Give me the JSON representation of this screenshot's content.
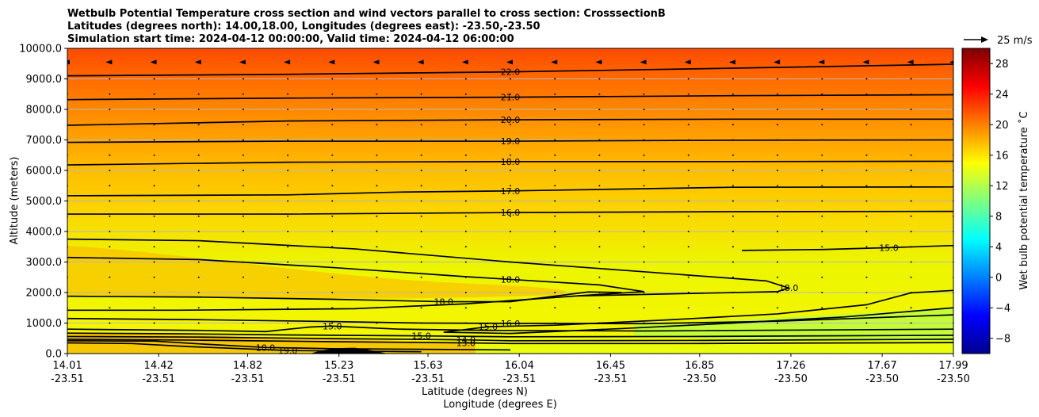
{
  "title_lines": [
    "Wetbulb Potential Temperature cross section and wind vectors parallel to cross section: CrosssectionB",
    "Latitudes (degrees north): 14.00,18.00, Longitudes (degrees east): -23.50,-23.50",
    "Simulation start time: 2024-04-12 00:00:00, Valid time: 2024-04-12 06:00:00"
  ],
  "quiver_key": "25 m/s",
  "chart_data": {
    "type": "heatmap",
    "title": "Wetbulb Potential Temperature cross section and wind vectors parallel to cross section: CrosssectionB",
    "xlabel": "Latitude (degrees N)",
    "xlabel2": "Longitude (degrees E)",
    "ylabel": "Altitude (meters)",
    "colorbar_label": "Wet bulb potential temperature ˚C",
    "colormap": "jet",
    "clim": [
      -10,
      30
    ],
    "colorbar_ticks": [
      "−8",
      "−4",
      "0",
      "4",
      "8",
      "12",
      "16",
      "20",
      "24",
      "28"
    ],
    "colorbar_tick_values": [
      -8,
      -4,
      0,
      4,
      8,
      12,
      16,
      20,
      24,
      28
    ],
    "xlim": [
      14.01,
      17.99
    ],
    "ylim": [
      0,
      10000
    ],
    "x_ticks": [
      {
        "lat": "14.01",
        "lon": "-23.51",
        "value": 14.01
      },
      {
        "lat": "14.42",
        "lon": "-23.51",
        "value": 14.42
      },
      {
        "lat": "14.82",
        "lon": "-23.51",
        "value": 14.82
      },
      {
        "lat": "15.23",
        "lon": "-23.51",
        "value": 15.23
      },
      {
        "lat": "15.63",
        "lon": "-23.51",
        "value": 15.63
      },
      {
        "lat": "16.04",
        "lon": "-23.51",
        "value": 16.04
      },
      {
        "lat": "16.45",
        "lon": "-23.51",
        "value": 16.45
      },
      {
        "lat": "16.85",
        "lon": "-23.50",
        "value": 16.85
      },
      {
        "lat": "17.26",
        "lon": "-23.50",
        "value": 17.26
      },
      {
        "lat": "17.67",
        "lon": "-23.50",
        "value": 17.67
      },
      {
        "lat": "17.99",
        "lon": "-23.50",
        "value": 17.99
      }
    ],
    "y_ticks": [
      {
        "label": "0.0",
        "value": 0
      },
      {
        "label": "1000.0",
        "value": 1000
      },
      {
        "label": "2000.0",
        "value": 2000
      },
      {
        "label": "3000.0",
        "value": 3000
      },
      {
        "label": "4000.0",
        "value": 4000
      },
      {
        "label": "5000.0",
        "value": 5000
      },
      {
        "label": "6000.0",
        "value": 6000
      },
      {
        "label": "7000.0",
        "value": 7000
      },
      {
        "label": "8000.0",
        "value": 8000
      },
      {
        "label": "9000.0",
        "value": 9000
      },
      {
        "label": "10000.0",
        "value": 10000
      }
    ],
    "grid": "horizontal",
    "contours": [
      {
        "level": 22,
        "label": "22.0",
        "points": [
          [
            14.01,
            9100
          ],
          [
            15.0,
            9150
          ],
          [
            16.0,
            9230
          ],
          [
            17.0,
            9350
          ],
          [
            17.99,
            9480
          ]
        ]
      },
      {
        "level": 21,
        "label": "21.0",
        "points": [
          [
            14.01,
            8320
          ],
          [
            15.0,
            8370
          ],
          [
            16.0,
            8400
          ],
          [
            17.0,
            8450
          ],
          [
            17.99,
            8480
          ]
        ]
      },
      {
        "level": 20,
        "label": "20.0",
        "points": [
          [
            14.01,
            7480
          ],
          [
            15.0,
            7620
          ],
          [
            16.0,
            7660
          ],
          [
            17.0,
            7680
          ],
          [
            17.99,
            7680
          ]
        ]
      },
      {
        "level": 19,
        "label": "19.0",
        "points": [
          [
            14.01,
            6920
          ],
          [
            15.0,
            6960
          ],
          [
            16.0,
            6960
          ],
          [
            17.0,
            6990
          ],
          [
            17.99,
            7000
          ]
        ]
      },
      {
        "level": 18,
        "label": "18.0",
        "points": [
          [
            14.01,
            6180
          ],
          [
            15.0,
            6270
          ],
          [
            16.0,
            6290
          ],
          [
            17.0,
            6290
          ],
          [
            17.99,
            6300
          ]
        ]
      },
      {
        "level": 17,
        "label": "17.0",
        "points": [
          [
            14.01,
            5170
          ],
          [
            15.0,
            5200
          ],
          [
            15.5,
            5290
          ],
          [
            16.0,
            5330
          ],
          [
            17.0,
            5450
          ],
          [
            17.99,
            5460
          ]
        ]
      },
      {
        "level": 16,
        "label": "16.0",
        "points": [
          [
            14.01,
            4570
          ],
          [
            15.0,
            4570
          ],
          [
            16.0,
            4620
          ],
          [
            17.0,
            4650
          ],
          [
            17.99,
            4660
          ]
        ]
      },
      {
        "level": 18,
        "label": "18.0",
        "points": [
          [
            14.01,
            3750
          ],
          [
            14.6,
            3700
          ],
          [
            15.3,
            3430
          ],
          [
            16.0,
            3000
          ],
          [
            16.6,
            2680
          ],
          [
            17.15,
            2380
          ],
          [
            17.25,
            2150
          ],
          [
            17.2,
            2030
          ],
          [
            16.3,
            1890
          ],
          [
            15.8,
            1630
          ],
          [
            15.3,
            1470
          ],
          [
            14.5,
            1420
          ],
          [
            14.01,
            1420
          ]
        ]
      },
      {
        "level": 18,
        "label": "18.0",
        "points": [
          [
            14.01,
            3150
          ],
          [
            14.6,
            3080
          ],
          [
            15.2,
            2820
          ],
          [
            15.8,
            2520
          ],
          [
            16.0,
            2430
          ],
          [
            16.4,
            2250
          ],
          [
            16.6,
            2030
          ],
          [
            16.3,
            1890
          ]
        ]
      },
      {
        "level": 18,
        "label": "18.0",
        "points": [
          [
            14.01,
            1880
          ],
          [
            14.6,
            1850
          ],
          [
            15.2,
            1780
          ],
          [
            15.7,
            1700
          ],
          [
            16.0,
            1700
          ],
          [
            16.35,
            2020
          ],
          [
            16.5,
            2000
          ]
        ]
      },
      {
        "level": 15,
        "label": "15.0",
        "points": [
          [
            17.04,
            3380
          ],
          [
            17.4,
            3410
          ],
          [
            17.7,
            3470
          ],
          [
            17.99,
            3540
          ]
        ]
      },
      {
        "level": 15,
        "label": "15.0",
        "points": [
          [
            17.99,
            2070
          ],
          [
            17.8,
            1990
          ],
          [
            17.6,
            1600
          ],
          [
            17.2,
            1300
          ],
          [
            16.7,
            1100
          ],
          [
            16.2,
            930
          ],
          [
            15.9,
            880
          ],
          [
            15.7,
            700
          ],
          [
            16.0,
            660
          ],
          [
            16.5,
            820
          ],
          [
            17.0,
            1000
          ],
          [
            17.5,
            1200
          ],
          [
            17.99,
            1500
          ]
        ]
      },
      {
        "level": 16,
        "label": "16.0",
        "points": [
          [
            14.01,
            1150
          ],
          [
            14.6,
            1110
          ],
          [
            15.2,
            1050
          ],
          [
            15.6,
            1000
          ],
          [
            16.0,
            990
          ],
          [
            16.6,
            980
          ],
          [
            17.2,
            1060
          ],
          [
            17.99,
            1270
          ]
        ]
      },
      {
        "level": 15,
        "label": "15.0",
        "points": [
          [
            14.01,
            800
          ],
          [
            14.6,
            760
          ],
          [
            14.9,
            720
          ],
          [
            15.1,
            870
          ],
          [
            15.2,
            900
          ],
          [
            15.5,
            800
          ],
          [
            15.9,
            760
          ],
          [
            16.6,
            740
          ],
          [
            17.99,
            800
          ]
        ]
      },
      {
        "level": 15,
        "label": "15.0",
        "points": [
          [
            14.01,
            670
          ],
          [
            14.5,
            650
          ],
          [
            15.0,
            610
          ],
          [
            15.6,
            580
          ],
          [
            16.0,
            550
          ],
          [
            16.8,
            560
          ],
          [
            17.99,
            600
          ]
        ]
      },
      {
        "level": 14,
        "label": "14.0",
        "points": [
          [
            14.01,
            560
          ],
          [
            14.6,
            540
          ],
          [
            15.2,
            490
          ],
          [
            15.8,
            450
          ],
          [
            16.0,
            420
          ],
          [
            16.8,
            430
          ],
          [
            17.99,
            470
          ]
        ]
      },
      {
        "level": 13,
        "label": "13.0",
        "points": [
          [
            14.01,
            470
          ],
          [
            14.6,
            440
          ],
          [
            15.2,
            390
          ],
          [
            15.8,
            350
          ],
          [
            16.0,
            330
          ],
          [
            16.8,
            330
          ],
          [
            17.99,
            360
          ]
        ]
      },
      {
        "level": 18,
        "label": "18.0",
        "points": [
          [
            14.01,
            420
          ],
          [
            14.4,
            410
          ],
          [
            14.6,
            320
          ],
          [
            14.9,
            200
          ],
          [
            15.2,
            160
          ],
          [
            15.6,
            140
          ],
          [
            16.0,
            120
          ]
        ]
      },
      {
        "level": 19,
        "label": "19.0",
        "points": [
          [
            14.01,
            350
          ],
          [
            14.3,
            330
          ],
          [
            14.55,
            230
          ],
          [
            15.0,
            100
          ],
          [
            15.3,
            80
          ],
          [
            15.6,
            60
          ]
        ]
      }
    ],
    "wind_rows": [
      {
        "altitude": 9550,
        "u": -4.0
      },
      {
        "altitude": 9000,
        "u": -0.5
      },
      {
        "altitude": 8500,
        "u": -0.3
      },
      {
        "altitude": 8000,
        "u": -0.3
      },
      {
        "altitude": 7500,
        "u": -0.3
      },
      {
        "altitude": 7000,
        "u": -0.3
      },
      {
        "altitude": 6500,
        "u": -0.3
      },
      {
        "altitude": 6000,
        "u": -0.3
      },
      {
        "altitude": 5500,
        "u": -0.3
      },
      {
        "altitude": 5000,
        "u": -0.3
      },
      {
        "altitude": 4500,
        "u": -0.3
      },
      {
        "altitude": 4000,
        "u": -0.3
      },
      {
        "altitude": 3500,
        "u": -0.3
      },
      {
        "altitude": 3000,
        "u": -0.3
      },
      {
        "altitude": 2500,
        "u": -0.3
      },
      {
        "altitude": 2000,
        "u": -0.3
      },
      {
        "altitude": 1500,
        "u": -0.3
      },
      {
        "altitude": 1000,
        "u": -0.3
      }
    ],
    "wind_lats": [
      14.01,
      14.2,
      14.4,
      14.6,
      14.8,
      15.0,
      15.2,
      15.4,
      15.6,
      15.8,
      16.0,
      16.2,
      16.4,
      16.6,
      16.8,
      17.0,
      17.2,
      17.4,
      17.6,
      17.8,
      17.99
    ],
    "terrain": [
      [
        15.1,
        0
      ],
      [
        15.15,
        100
      ],
      [
        15.22,
        180
      ],
      [
        15.3,
        190
      ],
      [
        15.38,
        100
      ],
      [
        15.45,
        0
      ]
    ]
  }
}
